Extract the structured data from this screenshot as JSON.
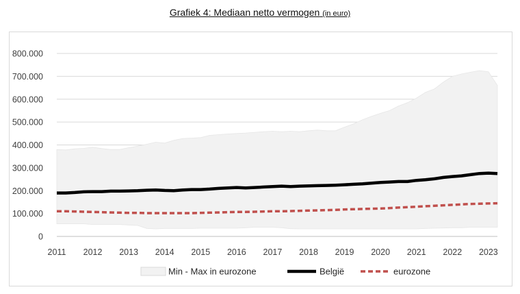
{
  "title": {
    "main": "Grafiek 4: Mediaan netto vermogen",
    "unit": "(in euro)"
  },
  "chart_data": {
    "type": "area",
    "y_ticks": [
      "0",
      "100.000",
      "200.000",
      "300.000",
      "400.000",
      "500.000",
      "600.000",
      "700.000",
      "800.000"
    ],
    "ylim": [
      0,
      800000
    ],
    "x_ticks": [
      "2011",
      "2012",
      "2013",
      "2014",
      "2015",
      "2016",
      "2017",
      "2018",
      "2019",
      "2020",
      "2021",
      "2022",
      "2023"
    ],
    "xlim": [
      2011.0,
      2023.25
    ],
    "grid": true,
    "legend_position": "bottom",
    "x": [
      2011.0,
      2011.25,
      2011.5,
      2011.75,
      2012.0,
      2012.25,
      2012.5,
      2012.75,
      2013.0,
      2013.25,
      2013.5,
      2013.75,
      2014.0,
      2014.25,
      2014.5,
      2014.75,
      2015.0,
      2015.25,
      2015.5,
      2015.75,
      2016.0,
      2016.25,
      2016.5,
      2016.75,
      2017.0,
      2017.25,
      2017.5,
      2017.75,
      2018.0,
      2018.25,
      2018.5,
      2018.75,
      2019.0,
      2019.25,
      2019.5,
      2019.75,
      2020.0,
      2020.25,
      2020.5,
      2020.75,
      2021.0,
      2021.25,
      2021.5,
      2021.75,
      2022.0,
      2022.25,
      2022.5,
      2022.75,
      2023.0,
      2023.25
    ],
    "series": [
      {
        "name": "Min - Max in eurozone",
        "kind": "range",
        "color": "#f2f2f2",
        "min": [
          55000,
          55000,
          55000,
          55000,
          52000,
          52000,
          52000,
          52000,
          50000,
          48000,
          35000,
          33000,
          35000,
          35000,
          35000,
          35000,
          36000,
          36000,
          36000,
          36000,
          36000,
          38000,
          40000,
          40000,
          40000,
          38000,
          34000,
          33000,
          33000,
          33000,
          33000,
          33000,
          33000,
          33000,
          33000,
          33000,
          33000,
          33000,
          33000,
          33000,
          33000,
          35000,
          36000,
          37000,
          38000,
          38000,
          40000,
          40000,
          40000,
          40000
        ],
        "max": [
          380000,
          378000,
          383000,
          385000,
          390000,
          384000,
          380000,
          380000,
          388000,
          395000,
          403000,
          412000,
          408000,
          420000,
          428000,
          430000,
          432000,
          442000,
          445000,
          448000,
          450000,
          452000,
          455000,
          458000,
          460000,
          458000,
          460000,
          458000,
          462000,
          465000,
          462000,
          462000,
          478000,
          492000,
          510000,
          525000,
          538000,
          550000,
          570000,
          585000,
          605000,
          630000,
          645000,
          675000,
          700000,
          710000,
          718000,
          725000,
          720000,
          660000
        ]
      },
      {
        "name": "België",
        "kind": "line",
        "color": "#000000",
        "values": [
          190000,
          190000,
          192000,
          195000,
          196000,
          196000,
          198000,
          198000,
          199000,
          200000,
          202000,
          203000,
          201000,
          200000,
          203000,
          205000,
          205000,
          207000,
          210000,
          212000,
          214000,
          212000,
          214000,
          216000,
          218000,
          220000,
          218000,
          220000,
          221000,
          222000,
          223000,
          224000,
          226000,
          228000,
          230000,
          233000,
          236000,
          238000,
          240000,
          240000,
          245000,
          248000,
          252000,
          258000,
          262000,
          265000,
          270000,
          275000,
          277000,
          275000
        ]
      },
      {
        "name": "eurozone",
        "kind": "dashed-line",
        "color": "#c0504d",
        "values": [
          110000,
          110000,
          109000,
          108000,
          107000,
          106000,
          105000,
          104000,
          103000,
          103000,
          102000,
          102000,
          102000,
          102000,
          102000,
          102000,
          103000,
          104000,
          105000,
          106000,
          107000,
          107000,
          108000,
          109000,
          110000,
          110000,
          111000,
          112000,
          113000,
          114000,
          115000,
          116000,
          118000,
          119000,
          120000,
          121000,
          122000,
          124000,
          126000,
          128000,
          130000,
          132000,
          134000,
          136000,
          138000,
          140000,
          142000,
          143000,
          144000,
          145000
        ]
      }
    ]
  }
}
